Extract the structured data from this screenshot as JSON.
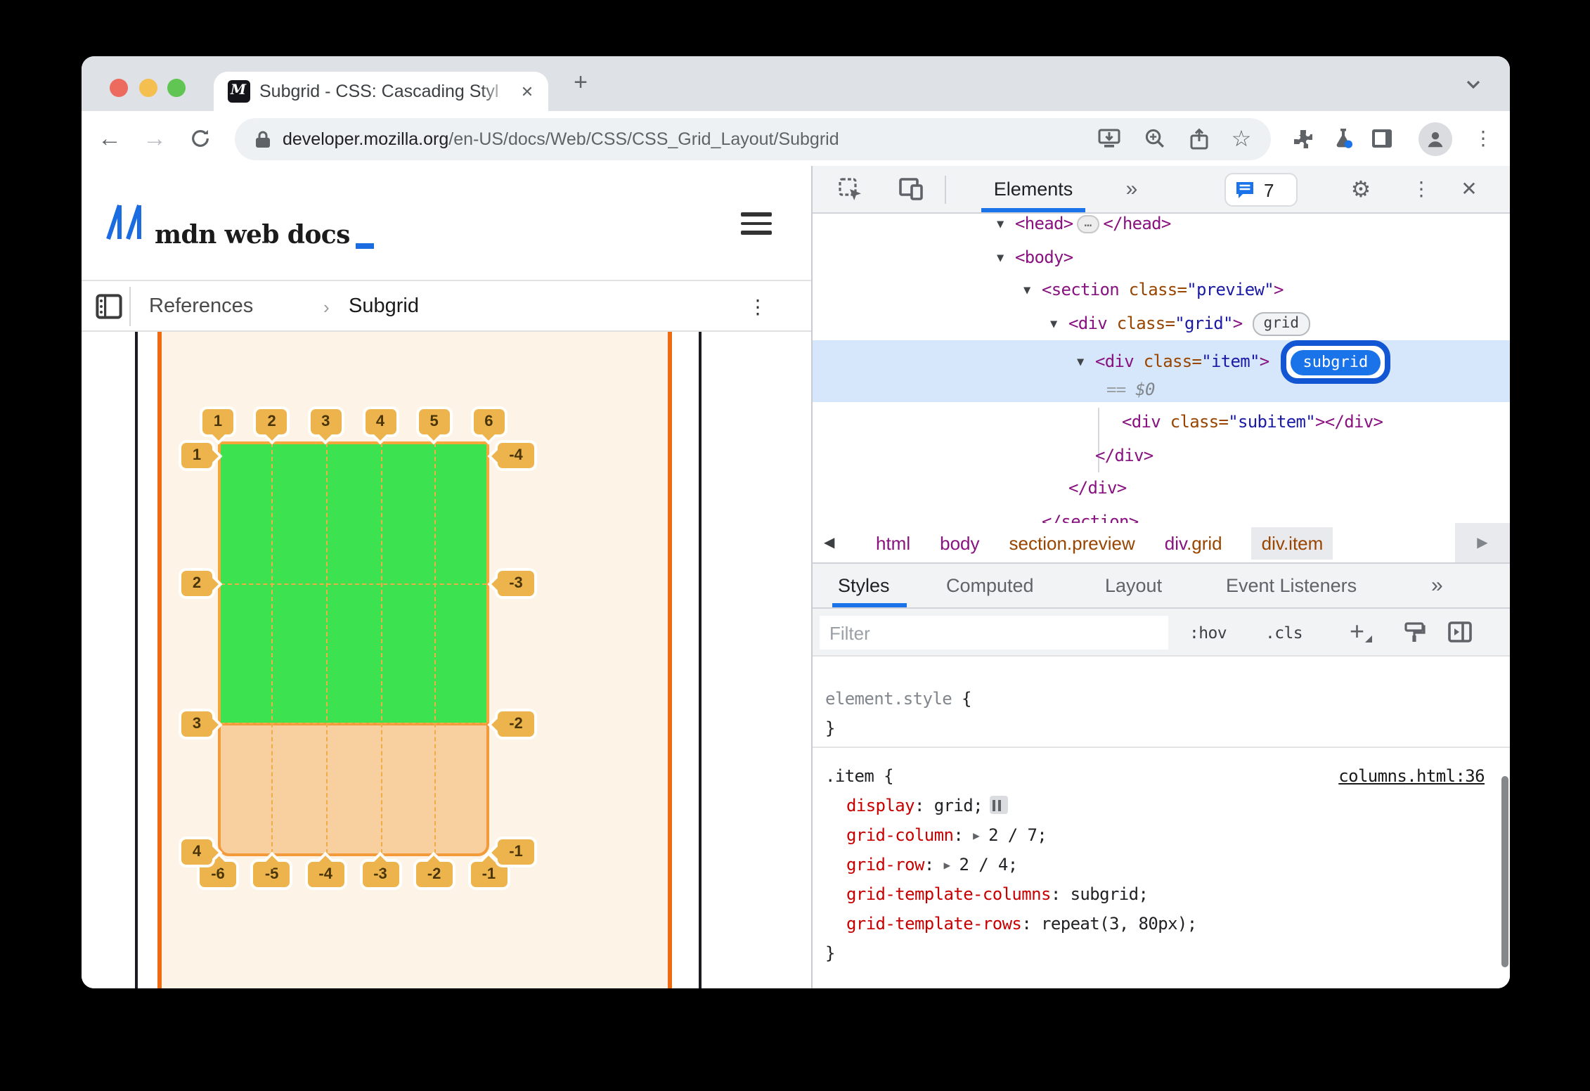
{
  "browser": {
    "tab_title": "Subgrid - CSS: Cascading Styl",
    "url": {
      "domain": "developer.mozilla.org",
      "path": "/en-US/docs/Web/CSS/CSS_Grid_Layout/Subgrid"
    }
  },
  "icons": {
    "back": "←",
    "forward": "→",
    "star": "☆",
    "kebab": "⋮",
    "close": "✕",
    "chevron_right": "›",
    "crumb_left": "◀",
    "crumb_right": "▶",
    "more_tabs": "»",
    "gear": "⚙",
    "new_tab": "+",
    "favicon_letter": "M"
  },
  "mdn": {
    "logo_text": "mdn web docs",
    "breadcrumb": {
      "parent": "References",
      "current": "Subgrid"
    }
  },
  "preview": {
    "colors": {
      "green": "#3ce24f",
      "item_fill": "#f8cf9e",
      "cream": "#fdf3e6",
      "flag": "#edb44e",
      "grid_border": "#f6a73c",
      "outer_line": "#ee6a13"
    },
    "col_lines_top": [
      "1",
      "2",
      "3",
      "4",
      "5",
      "6"
    ],
    "row_lines_left": [
      "1",
      "2",
      "3",
      "4"
    ],
    "row_lines_right": [
      "-4",
      "-3",
      "-2",
      "-1"
    ],
    "col_lines_bottom": [
      "-6",
      "-5",
      "-4",
      "-3",
      "-2",
      "-1"
    ]
  },
  "devtools": {
    "toolbar": {
      "panel_tab": "Elements",
      "more_tabs": "»",
      "issues_count": "7"
    },
    "dom": {
      "rows": [
        {
          "indent": 0,
          "arrow": true,
          "segs": [
            [
              "<head>",
              "tag"
            ],
            [
              "…",
              "more"
            ],
            [
              "</head>",
              "tag"
            ]
          ]
        },
        {
          "indent": 0,
          "arrow": true,
          "segs": [
            [
              "<body>",
              "tag"
            ]
          ]
        },
        {
          "indent": 1,
          "arrow": true,
          "segs": [
            [
              "<section ",
              "tag"
            ],
            [
              "class=",
              "attr"
            ],
            [
              "\"preview\"",
              "val"
            ],
            [
              ">",
              "tag"
            ]
          ]
        },
        {
          "indent": 2,
          "arrow": true,
          "segs": [
            [
              "<div ",
              "tag"
            ],
            [
              "class=",
              "attr"
            ],
            [
              "\"grid\"",
              "val"
            ],
            [
              ">",
              "tag"
            ]
          ],
          "badge": "grid"
        },
        {
          "indent": 3,
          "arrow": true,
          "selected": true,
          "segs": [
            [
              "<div ",
              "tag"
            ],
            [
              "class=",
              "attr"
            ],
            [
              "\"item\"",
              "val"
            ],
            [
              ">",
              "tag"
            ]
          ],
          "badge": "subgrid"
        },
        {
          "indent": 3,
          "equals": true,
          "selected": true,
          "segs": [
            [
              "== ",
              "eq"
            ],
            [
              "$0",
              "dollar"
            ]
          ]
        },
        {
          "indent": 4,
          "segs": [
            [
              "<div ",
              "tag"
            ],
            [
              "class=",
              "attr"
            ],
            [
              "\"subitem\"",
              "val"
            ],
            [
              ">",
              "tag"
            ],
            [
              "</div>",
              "tag"
            ]
          ]
        },
        {
          "indent": 3,
          "segs": [
            [
              "</div>",
              "tag"
            ]
          ]
        },
        {
          "indent": 2,
          "segs": [
            [
              "</div>",
              "tag"
            ]
          ]
        },
        {
          "indent": 1,
          "segs": [
            [
              "</section>",
              "tag"
            ]
          ]
        }
      ],
      "grid_badge": "grid",
      "subgrid_badge": "subgrid"
    },
    "crumbs": [
      {
        "segs": [
          [
            "html",
            "tag"
          ]
        ]
      },
      {
        "segs": [
          [
            "body",
            "tag"
          ]
        ]
      },
      {
        "segs": [
          [
            "section.preview",
            "attr"
          ]
        ]
      },
      {
        "segs": [
          [
            "div",
            "tag"
          ],
          [
            ".grid",
            "attr"
          ]
        ]
      },
      {
        "segs": [
          [
            "div.item",
            "attr"
          ]
        ],
        "selected": true
      }
    ],
    "style_tabs": [
      "Styles",
      "Computed",
      "Layout",
      "Event Listeners"
    ],
    "filter_placeholder": "Filter",
    "pseudo_toggle": ":hov",
    "class_toggle": ".cls",
    "rules": {
      "inline": {
        "selector": "element.style",
        "open": "{",
        "close": "}"
      },
      "item": {
        "selector": ".item",
        "open": "{",
        "close": "}",
        "source": "columns.html:36",
        "declarations": [
          {
            "prop": "display",
            "value": "grid;",
            "grid_icon": true
          },
          {
            "prop": "grid-column",
            "value": "2 / 7;",
            "arrow": true
          },
          {
            "prop": "grid-row",
            "value": "2 / 4;",
            "arrow": true
          },
          {
            "prop": "grid-template-columns",
            "value": "subgrid;"
          },
          {
            "prop": "grid-template-rows",
            "value": "repeat(3, 80px);"
          }
        ]
      }
    }
  }
}
